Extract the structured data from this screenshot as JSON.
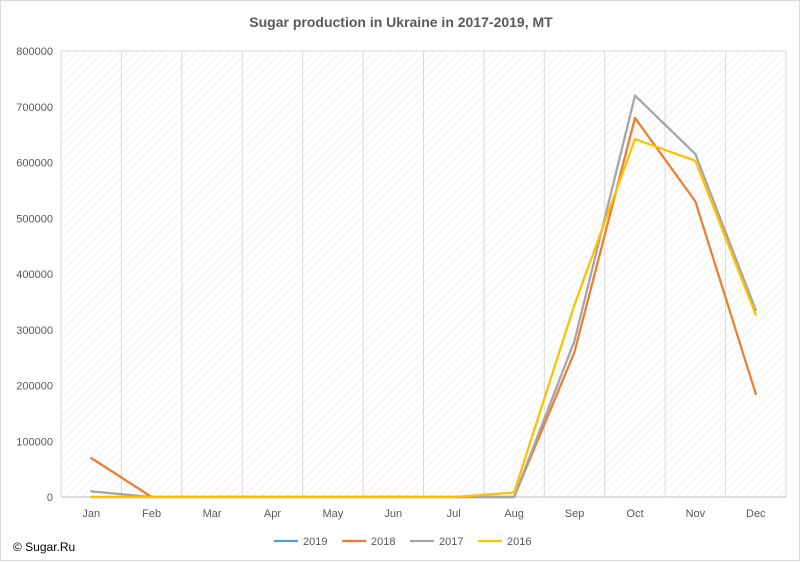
{
  "chart_data": {
    "type": "line",
    "title": "Sugar production in Ukraine in 2017-2019, MT",
    "xlabel": "",
    "ylabel": "",
    "categories": [
      "Jan",
      "Feb",
      "Mar",
      "Apr",
      "May",
      "Jun",
      "Jul",
      "Aug",
      "Sep",
      "Oct",
      "Nov",
      "Dec"
    ],
    "ylim": [
      0,
      800000
    ],
    "yticks": [
      "0",
      "100000",
      "200000",
      "300000",
      "400000",
      "500000",
      "600000",
      "700000",
      "800000"
    ],
    "grid": "vertical, hatched plot area",
    "legend": "bottom",
    "series": [
      {
        "name": "2019",
        "color": "#5B9BD5",
        "values": [
          0,
          0,
          0,
          0,
          0,
          0,
          0,
          0,
          null,
          null,
          null,
          null
        ]
      },
      {
        "name": "2018",
        "color": "#ED7D31",
        "values": [
          70000,
          0,
          0,
          0,
          0,
          0,
          0,
          0,
          260000,
          680000,
          530000,
          185000
        ]
      },
      {
        "name": "2017",
        "color": "#A5A5A5",
        "values": [
          10000,
          0,
          0,
          0,
          0,
          0,
          0,
          0,
          280000,
          720000,
          615000,
          335000
        ]
      },
      {
        "name": "2016",
        "color": "#FFC000",
        "values": [
          0,
          0,
          0,
          0,
          0,
          0,
          0,
          8000,
          345000,
          642000,
          603000,
          327000
        ]
      }
    ]
  },
  "footer": {
    "copyright": "© Sugar.Ru"
  }
}
